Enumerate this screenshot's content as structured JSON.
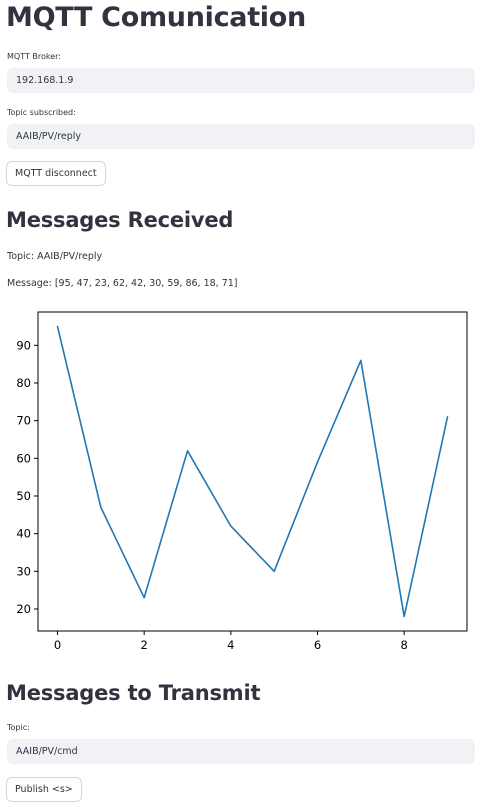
{
  "page": {
    "title": "MQTT Comunication"
  },
  "broker": {
    "label": "MQTT Broker:",
    "value": "192.168.1.9"
  },
  "subscribed": {
    "label": "Topic subscribed:",
    "value": "AAIB/PV/reply"
  },
  "disconnect_button": {
    "label": "MQTT disconnect"
  },
  "received": {
    "heading": "Messages Received",
    "topic_prefix": "Topic:",
    "topic_value": "AAIB/PV/reply",
    "message_prefix": "Message:",
    "message_value": "[95, 47, 23, 62, 42, 30, 59, 86, 18, 71]"
  },
  "chart_data": {
    "type": "line",
    "x": [
      0,
      1,
      2,
      3,
      4,
      5,
      6,
      7,
      8,
      9
    ],
    "series": [
      {
        "values": [
          95,
          47,
          23,
          62,
          42,
          30,
          59,
          86,
          18,
          71
        ],
        "color": "#1f77b4"
      }
    ],
    "title": "",
    "xlabel": "",
    "ylabel": "",
    "xlim": [
      -0.45,
      9.45
    ],
    "ylim": [
      14.15,
      98.85
    ],
    "xticks": [
      0,
      2,
      4,
      6,
      8
    ],
    "yticks": [
      20,
      30,
      40,
      50,
      60,
      70,
      80,
      90
    ],
    "grid": false
  },
  "transmit": {
    "heading": "Messages to Transmit",
    "topic_label": "Topic:",
    "topic_value": "AAIB/PV/cmd",
    "publish_label": "Publish <s>"
  }
}
